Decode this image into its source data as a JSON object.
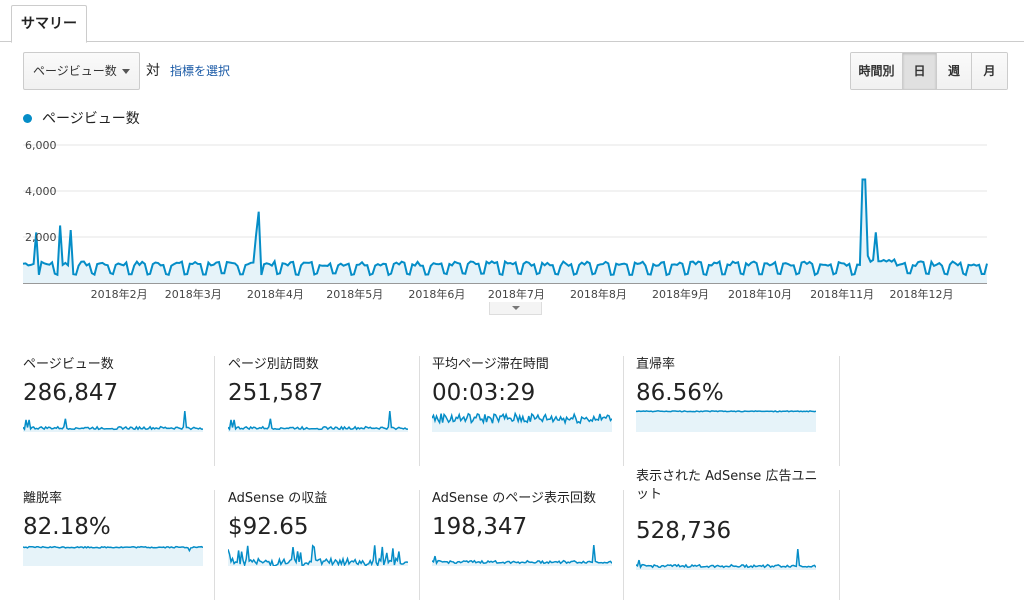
{
  "tabs": {
    "summary_label": "サマリー"
  },
  "toolbar": {
    "metric_select_value": "ページビュー数",
    "vs_label": "対",
    "select_metric_link": "指標を選択",
    "periods": [
      {
        "label": "時間別",
        "active": false
      },
      {
        "label": "日",
        "active": true
      },
      {
        "label": "週",
        "active": false
      },
      {
        "label": "月",
        "active": false
      }
    ]
  },
  "colors": {
    "accent": "#058dc7",
    "fill": "#e6f3f9",
    "grid": "#e5e5e5"
  },
  "legend": {
    "series_name": "ページビュー数"
  },
  "chart_data": {
    "type": "line",
    "title": "",
    "series": [
      {
        "name": "ページビュー数",
        "pattern": "daily, weekly weekday peaks and weekend dips",
        "base_weekday": 800,
        "base_weekend": 350,
        "spikes": [
          {
            "month": "2018年1月",
            "value": 2200
          },
          {
            "month": "2018年1月",
            "value": 2500
          },
          {
            "month": "2018年3月",
            "value": 3100
          },
          {
            "month": "2018年12月",
            "value": 4500
          }
        ]
      }
    ],
    "y_ticks": [
      "2,000",
      "4,000",
      "6,000"
    ],
    "x_ticks": [
      "2018年2月",
      "2018年3月",
      "2018年4月",
      "2018年5月",
      "2018年6月",
      "2018年7月",
      "2018年8月",
      "2018年9月",
      "2018年10月",
      "2018年11月",
      "2018年12月"
    ],
    "ylim": [
      0,
      6000
    ],
    "grid": true
  },
  "metrics": [
    {
      "label": "ページビュー数",
      "value": "286,847",
      "spark": "pv"
    },
    {
      "label": "ページ別訪問数",
      "value": "251,587",
      "spark": "pv"
    },
    {
      "label": "平均ページ滞在時間",
      "value": "00:03:29",
      "spark": "noise"
    },
    {
      "label": "直帰率",
      "value": "86.56%",
      "spark": "flat_high"
    },
    {
      "label": "離脱率",
      "value": "82.18%",
      "spark": "flat_high2"
    },
    {
      "label": "AdSense の収益",
      "value": "$92.65",
      "spark": "bars"
    },
    {
      "label": "AdSense のページ表示回数",
      "value": "198,347",
      "spark": "pv_late"
    },
    {
      "label": "表示された AdSense 広告ユニット",
      "value": "528,736",
      "spark": "pv_late"
    }
  ]
}
